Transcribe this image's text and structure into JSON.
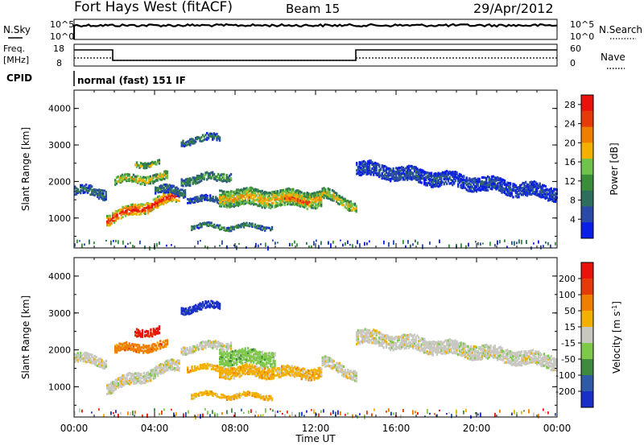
{
  "header": {
    "station": "Fort Hays West (fitACF)",
    "beam": "Beam 15",
    "date": "29/Apr/2012"
  },
  "strip_labels": {
    "nsky": "N.Sky",
    "nsearch": "N.Search",
    "freq_line1": "Freq.",
    "freq_line2": "[MHz]",
    "nave": "Nave",
    "cpid": "CPID",
    "cpid_text": "normal (fast) 151 IF"
  },
  "strip_ticks": {
    "noise_left": [
      "10^5",
      "10^0"
    ],
    "noise_right": [
      "10^5",
      "10^0"
    ],
    "freq_left": [
      "18",
      "8"
    ],
    "nave_right": [
      "60",
      "0"
    ]
  },
  "chart_data": [
    {
      "type": "heatmap",
      "panel": "power",
      "ylabel": "Slant Range [km]",
      "ylim": [
        180,
        4500
      ],
      "y_ticks": [
        "1000",
        "2000",
        "3000",
        "4000"
      ],
      "y_tick_values": [
        1000,
        2000,
        3000,
        4000
      ],
      "xlim": [
        0,
        24
      ],
      "colorbar": {
        "label": "Power [dB]",
        "ticks": [
          "28",
          "24",
          "20",
          "16",
          "12",
          "8",
          "4"
        ],
        "tick_values": [
          28,
          24,
          20,
          16,
          12,
          8,
          4
        ],
        "range": [
          0,
          30
        ],
        "colors": [
          "#0a1ee8",
          "#2a4aa8",
          "#2f6e5e",
          "#3a8e3a",
          "#6fc24b",
          "#f3b000",
          "#ef7f00",
          "#e53b0b",
          "#e8140a"
        ]
      },
      "echo_bands": [
        {
          "t0": 0.0,
          "t1": 1.6,
          "r_start": 1800,
          "r_end": 1700,
          "width": 260,
          "level": 0.25
        },
        {
          "t0": 1.6,
          "t1": 5.2,
          "r_start": 1000,
          "r_end": 1650,
          "width": 300,
          "level": 0.85
        },
        {
          "t0": 2.0,
          "t1": 4.6,
          "r_start": 2050,
          "r_end": 2150,
          "width": 220,
          "level": 0.55
        },
        {
          "t0": 3.0,
          "t1": 4.2,
          "r_start": 2500,
          "r_end": 2550,
          "width": 150,
          "level": 0.45
        },
        {
          "t0": 4.0,
          "t1": 5.5,
          "r_start": 1800,
          "r_end": 1750,
          "width": 220,
          "level": 0.25
        },
        {
          "t0": 5.3,
          "t1": 7.2,
          "r_start": 3120,
          "r_end": 3250,
          "width": 180,
          "level": 0.25
        },
        {
          "t0": 5.3,
          "t1": 7.8,
          "r_start": 2050,
          "r_end": 2200,
          "width": 200,
          "level": 0.35
        },
        {
          "t0": 5.6,
          "t1": 8.0,
          "r_start": 1550,
          "r_end": 1500,
          "width": 160,
          "level": 0.2
        },
        {
          "t0": 5.8,
          "t1": 9.8,
          "r_start": 800,
          "r_end": 780,
          "width": 120,
          "level": 0.3
        },
        {
          "t0": 7.2,
          "t1": 12.3,
          "r_start": 1600,
          "r_end": 1550,
          "width": 450,
          "level": 0.6
        },
        {
          "t0": 10.3,
          "t1": 11.7,
          "r_start": 1550,
          "r_end": 1500,
          "width": 180,
          "level": 0.8
        },
        {
          "t0": 12.3,
          "t1": 14.0,
          "r_start": 1700,
          "r_end": 1350,
          "width": 280,
          "level": 0.55
        },
        {
          "t0": 14.0,
          "t1": 24.0,
          "r_start": 2400,
          "r_end": 1700,
          "width": 380,
          "level": 0.15
        }
      ]
    },
    {
      "type": "heatmap",
      "panel": "velocity",
      "ylabel": "Slant Range [km]",
      "xlabel": "Time UT",
      "ylim": [
        180,
        4500
      ],
      "y_ticks": [
        "1000",
        "2000",
        "3000",
        "4000"
      ],
      "y_tick_values": [
        1000,
        2000,
        3000,
        4000
      ],
      "xlim": [
        0,
        24
      ],
      "x_ticks": [
        "00:00",
        "04:00",
        "08:00",
        "12:00",
        "16:00",
        "20:00",
        "00:00"
      ],
      "colorbar": {
        "label": "Velocity [m s^-1]",
        "ticks": [
          "200",
          "100",
          "50",
          "15",
          "-15",
          "-50",
          "-100",
          "-200"
        ],
        "colors": [
          "#1a2ec8",
          "#2e5aa6",
          "#3e8a3e",
          "#7ec84a",
          "#c8c8c0",
          "#f3b000",
          "#ef7f00",
          "#e53b0b",
          "#e8140a"
        ]
      },
      "echo_bands": [
        {
          "t0": 0.0,
          "t1": 1.6,
          "r_start": 1800,
          "r_end": 1700,
          "width": 260,
          "cat": 4
        },
        {
          "t0": 1.6,
          "t1": 5.2,
          "r_start": 1000,
          "r_end": 1650,
          "width": 300,
          "cat": 4
        },
        {
          "t0": 2.0,
          "t1": 4.6,
          "r_start": 2050,
          "r_end": 2150,
          "width": 220,
          "cat": 6
        },
        {
          "t0": 3.0,
          "t1": 4.2,
          "r_start": 2500,
          "r_end": 2550,
          "width": 200,
          "cat": 8
        },
        {
          "t0": 5.3,
          "t1": 7.2,
          "r_start": 3120,
          "r_end": 3250,
          "width": 180,
          "cat": 0
        },
        {
          "t0": 5.3,
          "t1": 7.8,
          "r_start": 2050,
          "r_end": 2200,
          "width": 200,
          "cat": 4
        },
        {
          "t0": 5.6,
          "t1": 8.0,
          "r_start": 1550,
          "r_end": 1500,
          "width": 160,
          "cat": 5
        },
        {
          "t0": 5.8,
          "t1": 9.8,
          "r_start": 800,
          "r_end": 780,
          "width": 120,
          "cat": 5
        },
        {
          "t0": 7.2,
          "t1": 10.0,
          "r_start": 1850,
          "r_end": 1800,
          "width": 400,
          "cat": 3
        },
        {
          "t0": 7.2,
          "t1": 12.3,
          "r_start": 1450,
          "r_end": 1400,
          "width": 300,
          "cat": 5
        },
        {
          "t0": 12.3,
          "t1": 14.0,
          "r_start": 1700,
          "r_end": 1350,
          "width": 280,
          "cat": 4
        },
        {
          "t0": 14.0,
          "t1": 24.0,
          "r_start": 2400,
          "r_end": 1700,
          "width": 380,
          "cat": 4
        }
      ]
    }
  ]
}
